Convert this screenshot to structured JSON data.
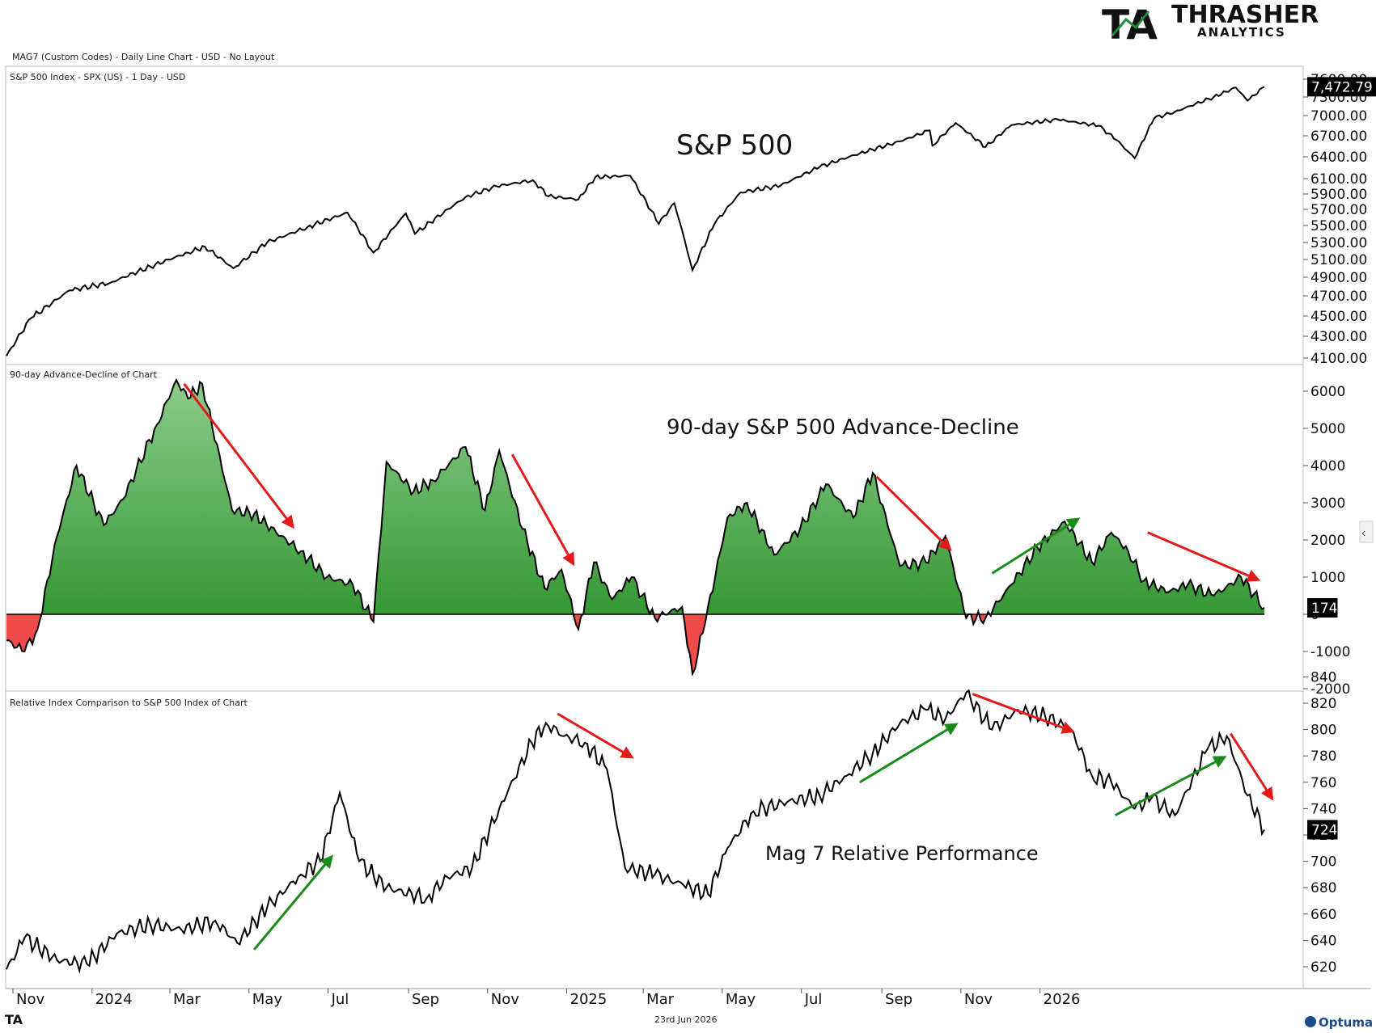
{
  "header": {
    "chart_info": "MAG7 (Custom Codes) - Daily Line Chart - USD - No Layout",
    "logo_mark": "TA",
    "logo_name": "THRASHER",
    "logo_sub": "ANALYTICS"
  },
  "footer": {
    "date": "23rd Jun 2026",
    "left_mark": "TA",
    "vendor": "Optuma"
  },
  "colors": {
    "line": "#000000",
    "area_pos_top": "#8ccc8a",
    "area_pos_bottom": "#1f8a1f",
    "area_neg": "#f04a4a",
    "arrow_red": "#e31a1a",
    "arrow_green": "#1a8a1a",
    "logo_green": "#1f8a3c"
  },
  "chart_data": [
    {
      "type": "line",
      "panel_label": "S&P 500 Index - SPX (US) - 1 Day - USD",
      "annotation": "S&P 500",
      "last_value_label": "7,472.79",
      "x": [
        "2023-10-27",
        "2023-11-15",
        "2023-12-15",
        "2024-01-15",
        "2024-02-15",
        "2024-03-15",
        "2024-03-28",
        "2024-04-19",
        "2024-05-15",
        "2024-06-15",
        "2024-07-16",
        "2024-08-05",
        "2024-08-30",
        "2024-09-06",
        "2024-10-15",
        "2024-11-08",
        "2024-12-06",
        "2024-12-18",
        "2025-01-10",
        "2025-01-23",
        "2025-02-19",
        "2025-03-13",
        "2025-03-25",
        "2025-04-08",
        "2025-04-25",
        "2025-05-15",
        "2025-06-15",
        "2025-07-15",
        "2025-08-15",
        "2025-09-15",
        "2025-10-08",
        "2025-10-10",
        "2025-10-28",
        "2025-11-20",
        "2025-12-10",
        "2026-01-15",
        "2026-02-15",
        "2026-03-01",
        "2026-03-15",
        "2026-03-30",
        "2026-04-15",
        "2026-05-15",
        "2026-06-01",
        "2026-06-10",
        "2026-06-23"
      ],
      "y": [
        4120,
        4480,
        4760,
        4840,
        5020,
        5180,
        5250,
        5000,
        5300,
        5480,
        5660,
        5180,
        5650,
        5400,
        5860,
        6000,
        6080,
        5870,
        5830,
        6120,
        6140,
        5520,
        5780,
        4980,
        5520,
        5920,
        6010,
        6260,
        6450,
        6620,
        6780,
        6560,
        6890,
        6540,
        6860,
        6940,
        6850,
        6640,
        6380,
        6960,
        7060,
        7300,
        7460,
        7240,
        7472.79
      ],
      "y_ticks": [
        4100,
        4300,
        4500,
        4700,
        4900,
        5100,
        5300,
        5500,
        5700,
        5900,
        6100,
        6400,
        6700,
        7000,
        7300,
        7600
      ]
    },
    {
      "type": "area",
      "panel_label": "90-day Advance-Decline of Chart",
      "annotation": "90-day S&P 500 Advance-Decline",
      "last_value_label": "174",
      "x": [
        "2023-10-27",
        "2023-11-10",
        "2023-11-20",
        "2023-12-05",
        "2023-12-20",
        "2024-01-10",
        "2024-01-25",
        "2024-02-20",
        "2024-03-06",
        "2024-03-15",
        "2024-03-26",
        "2024-04-18",
        "2024-05-05",
        "2024-05-22",
        "2024-06-10",
        "2024-06-30",
        "2024-07-20",
        "2024-08-05",
        "2024-08-15",
        "2024-09-05",
        "2024-09-20",
        "2024-10-15",
        "2024-10-30",
        "2024-11-10",
        "2024-11-28",
        "2024-12-15",
        "2024-12-28",
        "2025-01-10",
        "2025-01-22",
        "2025-02-05",
        "2025-02-20",
        "2025-03-10",
        "2025-03-31",
        "2025-04-08",
        "2025-04-18",
        "2025-05-05",
        "2025-05-20",
        "2025-06-10",
        "2025-06-30",
        "2025-07-20",
        "2025-08-10",
        "2025-08-25",
        "2025-09-15",
        "2025-10-05",
        "2025-10-20",
        "2025-11-05",
        "2025-11-20",
        "2025-12-10",
        "2025-12-30",
        "2026-01-20",
        "2026-02-10",
        "2026-02-25",
        "2026-03-10",
        "2026-03-22",
        "2026-04-10",
        "2026-04-25",
        "2026-05-15",
        "2026-06-05",
        "2026-06-23"
      ],
      "y": [
        -700,
        -1000,
        -400,
        2100,
        4000,
        2400,
        3100,
        5100,
        6300,
        5800,
        6200,
        2800,
        2700,
        2200,
        1700,
        1000,
        800,
        -200,
        4100,
        3300,
        3600,
        4500,
        2800,
        4400,
        2300,
        700,
        1200,
        -400,
        1400,
        400,
        1000,
        -100,
        200,
        -1600,
        -200,
        2600,
        3000,
        1600,
        2300,
        3500,
        2600,
        3800,
        1300,
        1400,
        2100,
        -100,
        -100,
        800,
        1800,
        2500,
        1400,
        2200,
        1700,
        900,
        600,
        800,
        500,
        1000,
        174
      ],
      "y_ticks": [
        -2000,
        -1000,
        0,
        1000,
        2000,
        3000,
        4000,
        5000,
        6000
      ]
    },
    {
      "type": "line",
      "panel_label": "Relative Index Comparison to S&P 500 Index of Chart",
      "annotation": "Mag 7 Relative Performance",
      "last_value_label": "724",
      "x": [
        "2023-10-27",
        "2023-11-10",
        "2023-12-05",
        "2023-12-28",
        "2024-01-20",
        "2024-02-15",
        "2024-03-10",
        "2024-04-05",
        "2024-04-22",
        "2024-05-15",
        "2024-06-10",
        "2024-06-25",
        "2024-07-10",
        "2024-07-25",
        "2024-08-15",
        "2024-09-15",
        "2024-10-01",
        "2024-10-20",
        "2024-11-10",
        "2024-12-05",
        "2024-12-16",
        "2024-12-30",
        "2025-01-15",
        "2025-02-01",
        "2025-02-15",
        "2025-03-10",
        "2025-04-01",
        "2025-04-20",
        "2025-05-05",
        "2025-05-25",
        "2025-06-20",
        "2025-07-15",
        "2025-08-05",
        "2025-08-25",
        "2025-09-15",
        "2025-10-05",
        "2025-10-20",
        "2025-11-05",
        "2025-11-25",
        "2025-12-15",
        "2026-01-05",
        "2026-01-25",
        "2026-02-10",
        "2026-02-25",
        "2026-03-15",
        "2026-03-28",
        "2026-04-15",
        "2026-05-10",
        "2026-05-25",
        "2026-06-10",
        "2026-06-23"
      ],
      "y": [
        618,
        642,
        625,
        622,
        645,
        652,
        648,
        655,
        638,
        665,
        690,
        700,
        752,
        700,
        680,
        672,
        688,
        695,
        740,
        790,
        805,
        795,
        790,
        770,
        695,
        690,
        682,
        675,
        710,
        738,
        745,
        750,
        765,
        782,
        805,
        815,
        808,
        828,
        800,
        815,
        810,
        800,
        765,
        760,
        740,
        748,
        735,
        785,
        795,
        750,
        724
      ],
      "y_ticks": [
        620,
        640,
        660,
        680,
        700,
        720,
        740,
        760,
        780,
        800,
        820,
        840
      ]
    }
  ],
  "x_axis": {
    "labels": [
      "Nov",
      "2024",
      "Mar",
      "May",
      "Jul",
      "Sep",
      "Nov",
      "2025",
      "Mar",
      "May",
      "Jul",
      "Sep",
      "Nov",
      "2026"
    ],
    "dates": [
      "2023-11-01",
      "2024-01-01",
      "2024-03-01",
      "2024-05-01",
      "2024-07-01",
      "2024-09-01",
      "2024-11-01",
      "2025-01-01",
      "2025-03-01",
      "2025-05-01",
      "2025-07-01",
      "2025-09-01",
      "2025-11-01",
      "2026-01-01"
    ]
  },
  "arrows": [
    {
      "panel": 1,
      "color": "red",
      "from": [
        "2024-03-12",
        6200
      ],
      "to": [
        "2024-06-05",
        2300
      ]
    },
    {
      "panel": 1,
      "color": "red",
      "from": [
        "2024-11-20",
        4300
      ],
      "to": [
        "2025-01-07",
        1300
      ]
    },
    {
      "panel": 1,
      "color": "red",
      "from": [
        "2025-08-28",
        3700
      ],
      "to": [
        "2025-10-25",
        1700
      ]
    },
    {
      "panel": 1,
      "color": "green",
      "from": [
        "2025-11-25",
        1100
      ],
      "to": [
        "2026-02-01",
        2600
      ]
    },
    {
      "panel": 1,
      "color": "red",
      "from": [
        "2026-03-25",
        2200
      ],
      "to": [
        "2026-06-20",
        900
      ]
    },
    {
      "panel": 2,
      "color": "green",
      "from": [
        "2024-05-05",
        633
      ],
      "to": [
        "2024-07-05",
        705
      ]
    },
    {
      "panel": 2,
      "color": "red",
      "from": [
        "2024-12-25",
        812
      ],
      "to": [
        "2025-02-22",
        778
      ]
    },
    {
      "panel": 2,
      "color": "green",
      "from": [
        "2025-08-15",
        760
      ],
      "to": [
        "2025-10-30",
        805
      ]
    },
    {
      "panel": 2,
      "color": "red",
      "from": [
        "2025-11-10",
        827
      ],
      "to": [
        "2026-01-28",
        798
      ]
    },
    {
      "panel": 2,
      "color": "green",
      "from": [
        "2026-02-28",
        735
      ],
      "to": [
        "2026-05-25",
        780
      ]
    },
    {
      "panel": 2,
      "color": "red",
      "from": [
        "2026-05-28",
        797
      ],
      "to": [
        "2026-06-30",
        746
      ]
    }
  ]
}
